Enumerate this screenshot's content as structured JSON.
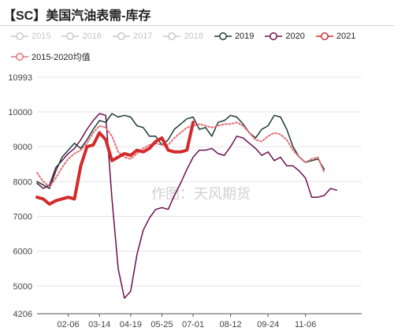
{
  "title": "【SC】美国汽油表需-库存",
  "watermark": "作图：天风期货",
  "colors": {
    "s2015": "#c8c8c8",
    "s2016": "#c8c8c8",
    "s2017": "#c8c8c8",
    "s2018": "#c8c8c8",
    "s2019": "#1d3a32",
    "s2020": "#6a1050",
    "s2021": "#d32b2b",
    "avg": "#e2707a"
  },
  "chart_data": {
    "type": "line",
    "ylim": [
      4206,
      10993
    ],
    "y_ticks": [
      "10993",
      "10000",
      "9000",
      "8000",
      "7000",
      "6000",
      "5000",
      "4206"
    ],
    "x_ticks": [
      "02-06",
      "03-14",
      "04-19",
      "05-25",
      "07-01",
      "08-12",
      "09-24",
      "11-06"
    ],
    "x_tick_weeks": [
      5,
      10,
      15,
      20,
      25,
      31,
      37,
      43
    ],
    "week_count": 53,
    "legend": [
      {
        "name": "2015",
        "key": "s2015",
        "visible": false
      },
      {
        "name": "2016",
        "key": "s2016",
        "visible": false
      },
      {
        "name": "2017",
        "key": "s2017",
        "visible": false
      },
      {
        "name": "2018",
        "key": "s2018",
        "visible": false
      },
      {
        "name": "2019",
        "key": "s2019",
        "visible": true
      },
      {
        "name": "2020",
        "key": "s2020",
        "visible": true
      },
      {
        "name": "2021",
        "key": "s2021",
        "visible": true
      },
      {
        "name": "2015-2020均值",
        "key": "avg",
        "visible": true
      }
    ],
    "series": [
      {
        "name": "2019",
        "key": "s2019",
        "style": "solid",
        "width": 1.5,
        "points": [
          [
            0,
            8000
          ],
          [
            1,
            7900
          ],
          [
            2,
            7800
          ],
          [
            3,
            8300
          ],
          [
            4,
            8700
          ],
          [
            5,
            8900
          ],
          [
            6,
            9100
          ],
          [
            7,
            8950
          ],
          [
            8,
            9200
          ],
          [
            9,
            9500
          ],
          [
            10,
            9750
          ],
          [
            11,
            9700
          ],
          [
            12,
            9950
          ],
          [
            13,
            9850
          ],
          [
            14,
            9900
          ],
          [
            15,
            9850
          ],
          [
            16,
            9600
          ],
          [
            17,
            9550
          ],
          [
            18,
            9300
          ],
          [
            19,
            9300
          ],
          [
            20,
            9050
          ],
          [
            21,
            9200
          ],
          [
            22,
            9500
          ],
          [
            23,
            9650
          ],
          [
            24,
            9800
          ],
          [
            25,
            9850
          ],
          [
            26,
            9500
          ],
          [
            27,
            9550
          ],
          [
            28,
            9300
          ],
          [
            29,
            9700
          ],
          [
            30,
            9750
          ],
          [
            31,
            9900
          ],
          [
            32,
            9850
          ],
          [
            33,
            9650
          ],
          [
            34,
            9400
          ],
          [
            35,
            9250
          ],
          [
            36,
            9500
          ],
          [
            37,
            9600
          ],
          [
            38,
            9900
          ],
          [
            39,
            9850
          ],
          [
            40,
            9500
          ],
          [
            41,
            9000
          ],
          [
            42,
            8700
          ],
          [
            43,
            8550
          ],
          [
            44,
            8600
          ],
          [
            45,
            8650
          ],
          [
            46,
            8350
          ]
        ]
      },
      {
        "name": "2020",
        "key": "s2020",
        "style": "solid",
        "width": 1.5,
        "points": [
          [
            0,
            7950
          ],
          [
            1,
            7800
          ],
          [
            2,
            7900
          ],
          [
            3,
            8400
          ],
          [
            4,
            8600
          ],
          [
            5,
            8800
          ],
          [
            6,
            8950
          ],
          [
            7,
            9200
          ],
          [
            8,
            9500
          ],
          [
            9,
            9750
          ],
          [
            10,
            9950
          ],
          [
            11,
            9900
          ],
          [
            12,
            7500
          ],
          [
            13,
            5500
          ],
          [
            14,
            4650
          ],
          [
            15,
            4850
          ],
          [
            16,
            5900
          ],
          [
            17,
            6600
          ],
          [
            18,
            6950
          ],
          [
            19,
            7200
          ],
          [
            20,
            7250
          ],
          [
            21,
            7200
          ],
          [
            22,
            7600
          ],
          [
            23,
            7950
          ],
          [
            24,
            8350
          ],
          [
            25,
            8700
          ],
          [
            26,
            8900
          ],
          [
            27,
            8900
          ],
          [
            28,
            8950
          ],
          [
            29,
            8800
          ],
          [
            30,
            8750
          ],
          [
            31,
            9000
          ],
          [
            32,
            9300
          ],
          [
            33,
            9250
          ],
          [
            34,
            9100
          ],
          [
            35,
            8950
          ],
          [
            36,
            8750
          ],
          [
            37,
            8850
          ],
          [
            38,
            8600
          ],
          [
            39,
            8700
          ],
          [
            40,
            8450
          ],
          [
            41,
            8450
          ],
          [
            42,
            8300
          ],
          [
            43,
            8100
          ],
          [
            44,
            7550
          ],
          [
            45,
            7550
          ],
          [
            46,
            7600
          ],
          [
            47,
            7800
          ],
          [
            48,
            7750
          ]
        ]
      },
      {
        "name": "2021",
        "key": "s2021",
        "style": "solid",
        "width": 4,
        "points": [
          [
            0,
            7550
          ],
          [
            1,
            7500
          ],
          [
            2,
            7350
          ],
          [
            3,
            7450
          ],
          [
            4,
            7500
          ],
          [
            5,
            7550
          ],
          [
            6,
            7500
          ],
          [
            7,
            8450
          ],
          [
            8,
            9000
          ],
          [
            9,
            9050
          ],
          [
            10,
            9400
          ],
          [
            11,
            9200
          ],
          [
            12,
            8600
          ],
          [
            13,
            8700
          ],
          [
            14,
            8800
          ],
          [
            15,
            8750
          ],
          [
            16,
            8900
          ],
          [
            17,
            8850
          ],
          [
            18,
            8950
          ],
          [
            19,
            9150
          ],
          [
            20,
            9250
          ],
          [
            21,
            8900
          ],
          [
            22,
            8850
          ],
          [
            23,
            8850
          ],
          [
            24,
            8900
          ],
          [
            25,
            9700
          ]
        ]
      },
      {
        "name": "2015-2020均值",
        "key": "avg",
        "style": "dotted",
        "width": 2,
        "points": [
          [
            0,
            8250
          ],
          [
            1,
            8000
          ],
          [
            2,
            7850
          ],
          [
            3,
            8100
          ],
          [
            4,
            8400
          ],
          [
            5,
            8650
          ],
          [
            6,
            8800
          ],
          [
            7,
            8900
          ],
          [
            8,
            9100
          ],
          [
            9,
            9400
          ],
          [
            10,
            9600
          ],
          [
            11,
            9550
          ],
          [
            12,
            9300
          ],
          [
            13,
            8850
          ],
          [
            14,
            8700
          ],
          [
            15,
            8650
          ],
          [
            16,
            8800
          ],
          [
            17,
            8950
          ],
          [
            18,
            9050
          ],
          [
            19,
            9100
          ],
          [
            20,
            9050
          ],
          [
            21,
            9050
          ],
          [
            22,
            9250
          ],
          [
            23,
            9400
          ],
          [
            24,
            9550
          ],
          [
            25,
            9600
          ],
          [
            26,
            9650
          ],
          [
            27,
            9600
          ],
          [
            28,
            9550
          ],
          [
            29,
            9600
          ],
          [
            30,
            9650
          ],
          [
            31,
            9650
          ],
          [
            32,
            9700
          ],
          [
            33,
            9600
          ],
          [
            34,
            9400
          ],
          [
            35,
            9200
          ],
          [
            36,
            9150
          ],
          [
            37,
            9300
          ],
          [
            38,
            9400
          ],
          [
            39,
            9350
          ],
          [
            40,
            9200
          ],
          [
            41,
            8900
          ],
          [
            42,
            8700
          ],
          [
            43,
            8550
          ],
          [
            44,
            8650
          ],
          [
            45,
            8700
          ],
          [
            46,
            8250
          ]
        ]
      }
    ]
  }
}
